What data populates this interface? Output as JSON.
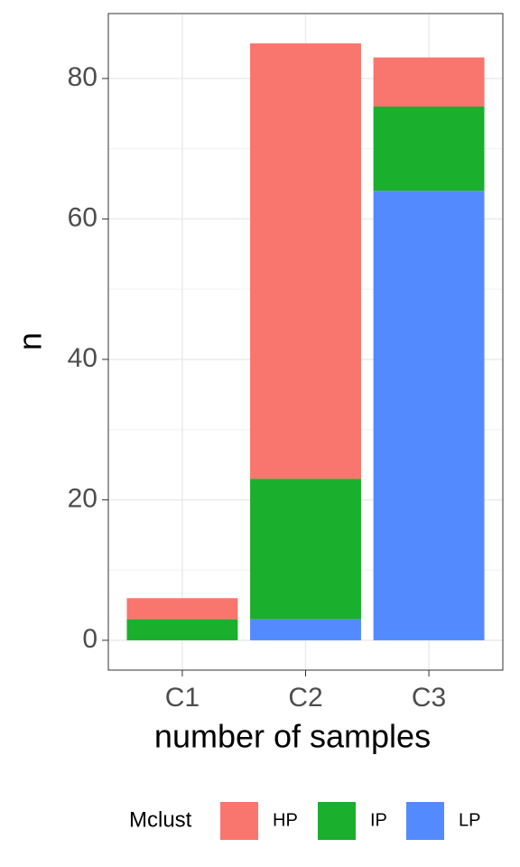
{
  "chart_data": {
    "type": "stacked-bar",
    "categories": [
      "C1",
      "C2",
      "C3"
    ],
    "series": [
      {
        "name": "HP",
        "color": "#f8766d",
        "values": [
          3,
          62,
          7
        ]
      },
      {
        "name": "IP",
        "color": "#1aaf2d",
        "values": [
          3,
          20,
          12
        ]
      },
      {
        "name": "LP",
        "color": "#538bff",
        "values": [
          0,
          3,
          64
        ]
      }
    ],
    "ylim": [
      -4.25,
      89.25
    ],
    "yticks": [
      0,
      20,
      40,
      60,
      80
    ],
    "grid": true,
    "xlabel": "number of samples",
    "ylabel": "n",
    "legend_title": "Mclust",
    "legend_position": "bottom"
  }
}
